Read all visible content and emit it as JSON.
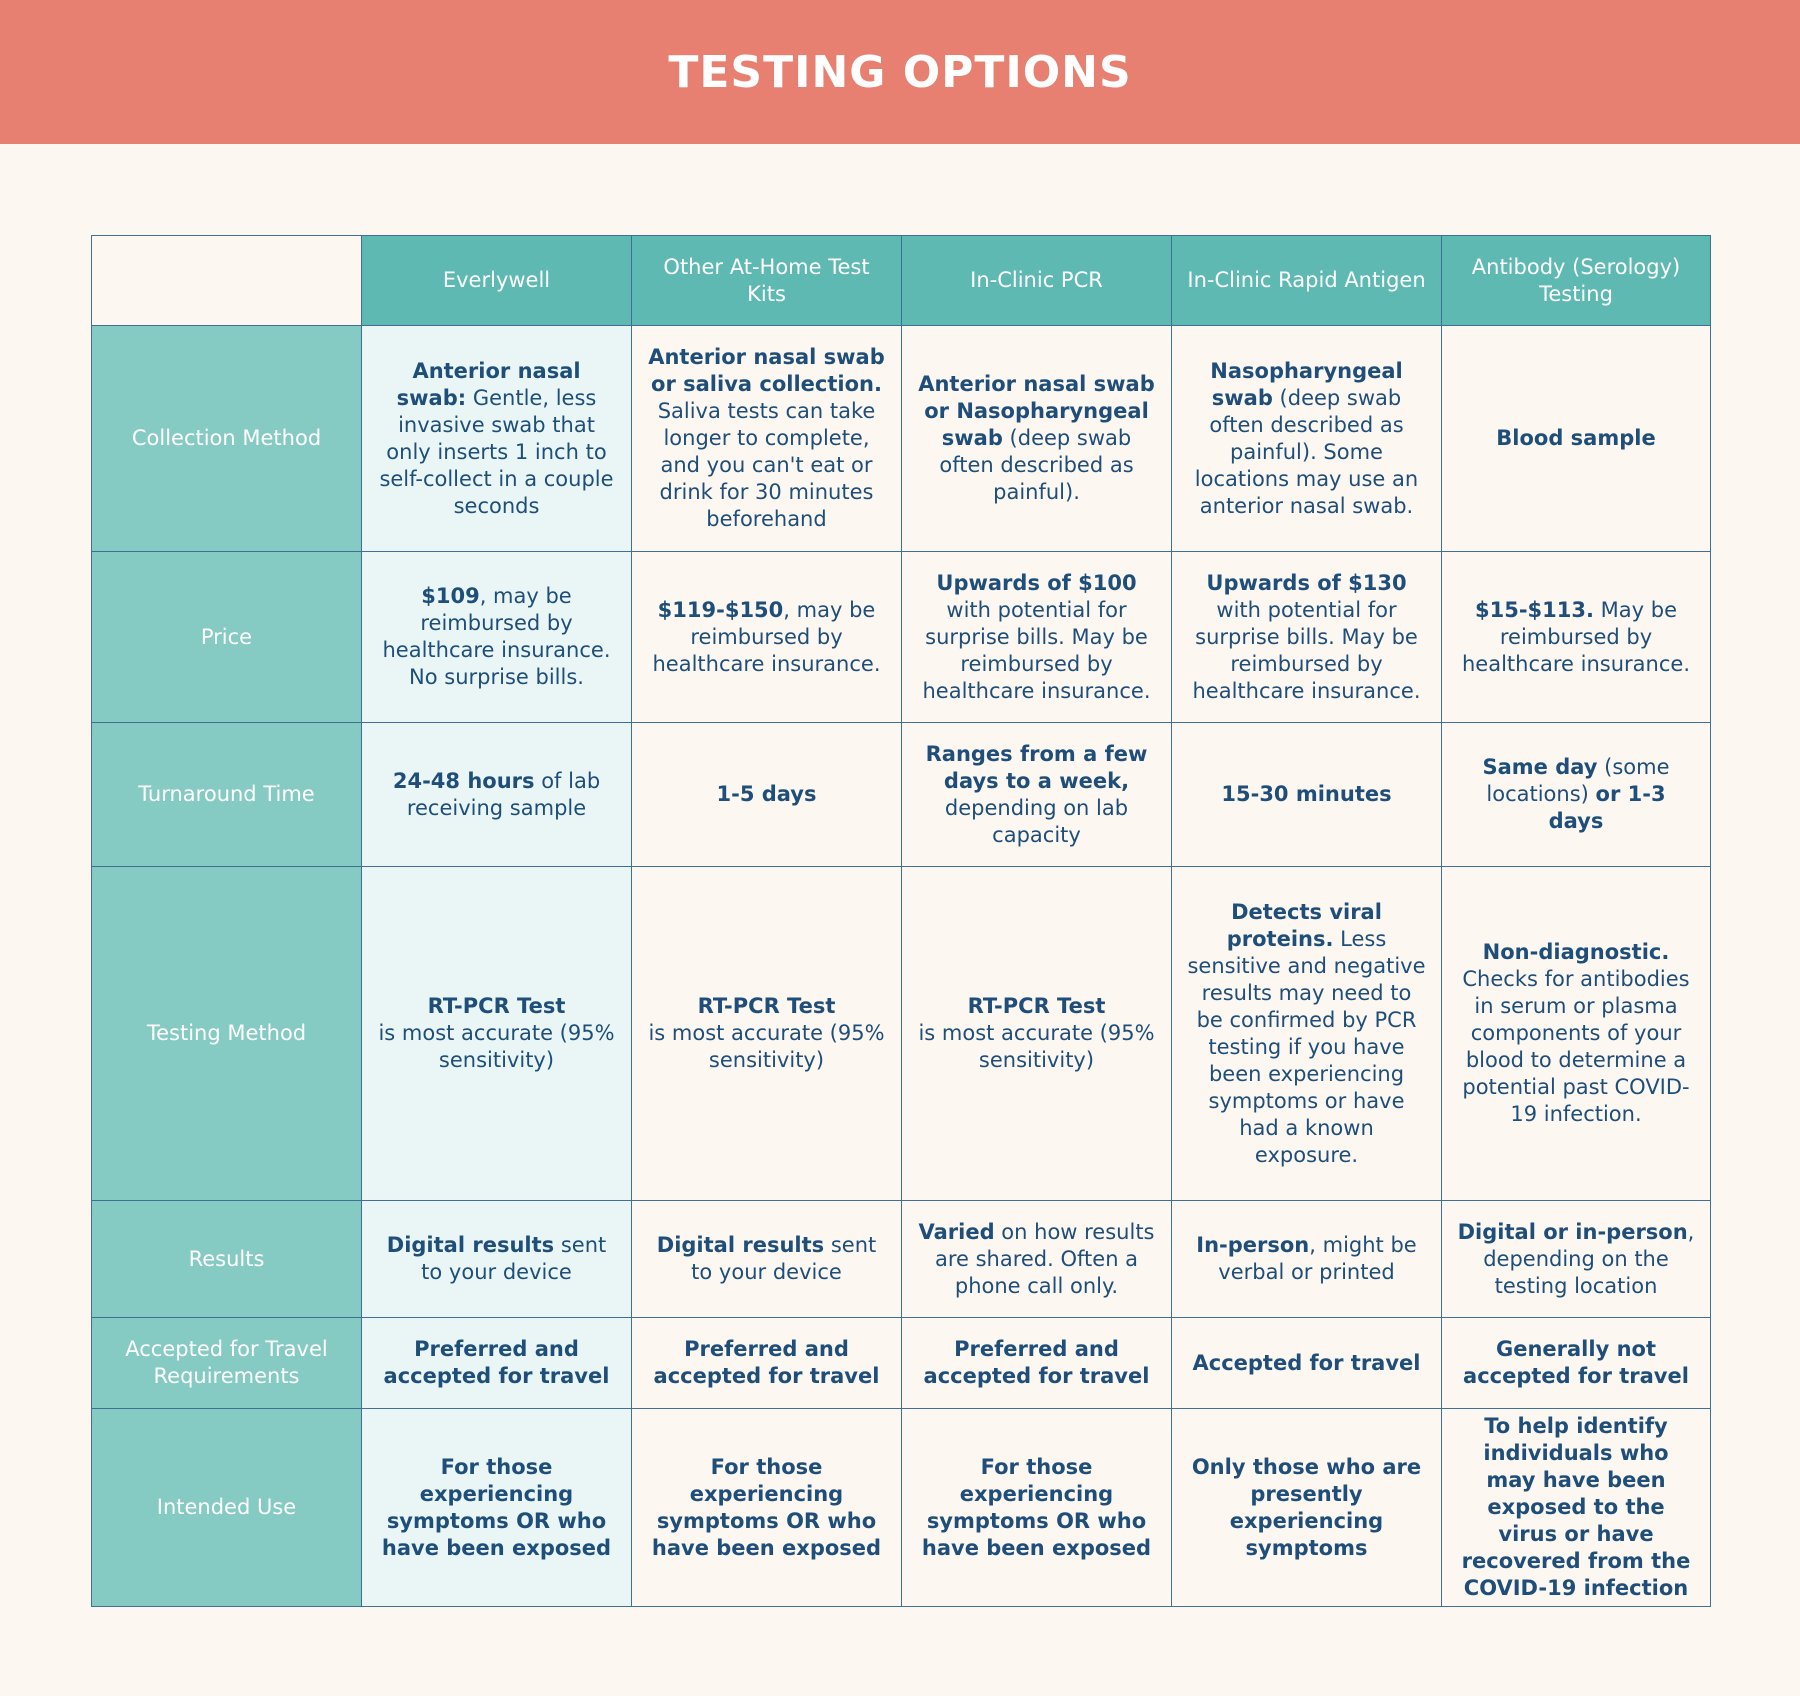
{
  "title": "TESTING OPTIONS",
  "columns": [
    "Everlywell",
    "Other At-Home Test Kits",
    "In-Clinic PCR",
    "In-Clinic Rapid Antigen",
    "Antibody (Serology) Testing"
  ],
  "rows": [
    {
      "label": "Collection Method",
      "cells": [
        {
          "bold": "Anterior nasal swab:",
          "rest": "Gentle, less invasive swab that only inserts 1 inch to self-collect in a couple seconds"
        },
        {
          "bold": "Anterior nasal swab or saliva collection.",
          "rest": "Saliva tests can take longer to complete, and you can't eat or drink for 30 minutes beforehand"
        },
        {
          "bold": "Anterior nasal swab or Nasopharyngeal swab",
          "rest": "(deep swab often described as painful)."
        },
        {
          "bold": "Nasopharyngeal swab",
          "rest": "(deep swab often described as painful). Some locations may use an anterior nasal swab."
        },
        {
          "bold": "Blood sample",
          "rest": ""
        }
      ]
    },
    {
      "label": "Price",
      "cells": [
        {
          "bold": "$109",
          "rest": ", may be reimbursed by healthcare insurance. No surprise bills."
        },
        {
          "bold": "$119-$150",
          "rest": ", may be reimbursed by healthcare insurance."
        },
        {
          "bold": "Upwards of $100",
          "rest": "with potential for surprise bills. May be reimbursed by healthcare insurance."
        },
        {
          "bold": "Upwards of $130",
          "rest": "with potential for surprise bills. May be reimbursed by healthcare insurance."
        },
        {
          "bold": "$15-$113.",
          "rest": "May be reimbursed by healthcare insurance."
        }
      ]
    },
    {
      "label": "Turnaround Time",
      "cells": [
        {
          "bold": "24-48 hours",
          "rest": "of lab receiving sample"
        },
        {
          "bold": "1-5 days",
          "rest": ""
        },
        {
          "bold": "Ranges from a few days  to a week,",
          "rest": "depending on lab capacity"
        },
        {
          "bold": "15-30 minutes",
          "rest": ""
        },
        {
          "bold": "Same day",
          "rest": "(some locations)",
          "bold2": "or 1-3 days"
        }
      ]
    },
    {
      "label": "Testing Method",
      "cells": [
        {
          "bold": "RT-PCR Test",
          "rest": "is most accurate (95% sensitivity)"
        },
        {
          "bold": "RT-PCR Test",
          "rest": "is most accurate (95% sensitivity)"
        },
        {
          "bold": "RT-PCR Test",
          "rest": "is most accurate (95% sensitivity)"
        },
        {
          "bold": "Detects viral proteins.",
          "rest": "Less sensitive and negative results may need to be confirmed by PCR testing if you have been experiencing symptoms or have had a known exposure."
        },
        {
          "bold": "Non-diagnostic.",
          "rest": "Checks for antibodies in serum or plasma components of your blood to determine a potential past COVID-19 infection."
        }
      ]
    },
    {
      "label": "Results",
      "cells": [
        {
          "bold": "Digital results",
          "rest": "sent to your device"
        },
        {
          "bold": "Digital results",
          "rest": "sent to your device"
        },
        {
          "bold": "Varied",
          "rest": "on how results are shared. Often a phone call only."
        },
        {
          "bold": "In-person",
          "rest": ", might be verbal or printed"
        },
        {
          "bold": "Digital or in-person",
          "rest": ", depending on the testing location"
        }
      ]
    },
    {
      "label": "Accepted for Travel Requirements",
      "cells": [
        {
          "bold": "Preferred and accepted for travel",
          "rest": ""
        },
        {
          "bold": "Preferred and accepted for travel",
          "rest": ""
        },
        {
          "bold": "Preferred and accepted for travel",
          "rest": ""
        },
        {
          "bold": "Accepted for travel",
          "rest": ""
        },
        {
          "bold": "Generally not accepted for travel",
          "rest": ""
        }
      ]
    },
    {
      "label": "Intended Use",
      "cells": [
        {
          "bold": "For those experiencing symptoms OR who have been exposed",
          "rest": ""
        },
        {
          "bold": "For those experiencing symptoms OR who have been exposed",
          "rest": ""
        },
        {
          "bold": "For those experiencing symptoms OR who have been exposed",
          "rest": ""
        },
        {
          "bold": "Only those who are presently experiencing symptoms",
          "rest": ""
        },
        {
          "bold": "To help identify individuals who may have been exposed to the virus or have recovered from the COVID-19 infection",
          "rest": ""
        }
      ]
    }
  ]
}
